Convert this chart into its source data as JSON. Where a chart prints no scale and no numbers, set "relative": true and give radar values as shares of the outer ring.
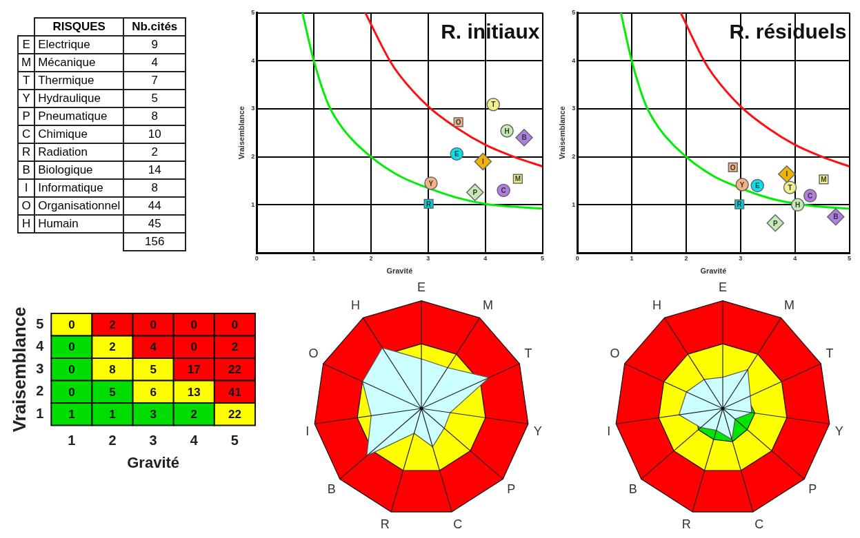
{
  "chart_data": [
    {
      "type": "other",
      "annotations": [
        "RISQUES",
        "Nb.cités"
      ],
      "y_categories": [
        "E",
        "M",
        "T",
        "Y",
        "P",
        "C",
        "R",
        "B",
        "I",
        "O",
        "H"
      ],
      "categories": [
        "Electrique",
        "Mécanique",
        "Thermique",
        "Hydraulique",
        "Pneumatique",
        "Chimique",
        "Radiation",
        "Biologique",
        "Informatique",
        "Organisationnel",
        "Humain"
      ],
      "values": [
        9,
        4,
        7,
        5,
        8,
        10,
        2,
        14,
        8,
        44,
        45
      ],
      "data_labels": true,
      "totals": [
        "156"
      ]
    },
    {
      "type": "scatter",
      "title": "R. initiaux",
      "xlabel": "Gravité",
      "ylabel": "Vraisemblance",
      "xlim": [
        0,
        5
      ],
      "ylim": [
        0,
        5
      ],
      "xticks": [
        0,
        1,
        2,
        3,
        4,
        5
      ],
      "yticks": [
        1,
        2,
        3,
        4,
        5
      ],
      "grid": true,
      "legend": false,
      "series": [
        {
          "type": "line",
          "color": "#00ee00",
          "marker": "none",
          "x": [
            0.8,
            1,
            1.25,
            1.5,
            2,
            2.5,
            3,
            3.5,
            4,
            4.5,
            5
          ],
          "values": [
            5,
            4,
            3.1,
            2.6,
            2,
            1.6,
            1.35,
            1.15,
            1.02,
            0.96,
            0.92
          ]
        },
        {
          "type": "line",
          "color": "#ff1010",
          "marker": "none",
          "x": [
            1.9,
            2.33,
            2.5,
            3,
            3.5,
            4,
            4.5,
            5
          ],
          "values": [
            5,
            4,
            3.7,
            3.05,
            2.6,
            2.25,
            2,
            1.8
          ]
        },
        {
          "name": "T",
          "color": "#f2f28c",
          "marker": "circle",
          "x": [
            4.14
          ],
          "values": [
            3.09
          ]
        },
        {
          "name": "O",
          "color": "#f4b183",
          "marker": "square",
          "x": [
            3.53
          ],
          "values": [
            2.72
          ]
        },
        {
          "name": "H",
          "color": "#c6eab4",
          "marker": "circle",
          "x": [
            4.38
          ],
          "values": [
            2.54
          ]
        },
        {
          "name": "B",
          "color": "#b07ee0",
          "marker": "diamond",
          "x": [
            4.68
          ],
          "values": [
            2.4
          ]
        },
        {
          "name": "E",
          "color": "#00e5ee",
          "marker": "circle",
          "x": [
            3.5
          ],
          "values": [
            2.06
          ]
        },
        {
          "name": "I",
          "color": "#f0b400",
          "marker": "diamond",
          "x": [
            3.96
          ],
          "values": [
            1.9
          ]
        },
        {
          "name": "M",
          "color": "#f4f08a",
          "marker": "square",
          "x": [
            4.57
          ],
          "values": [
            1.54
          ]
        },
        {
          "name": "Y",
          "color": "#f4b183",
          "marker": "circle",
          "x": [
            3.05
          ],
          "values": [
            1.45
          ]
        },
        {
          "name": "P",
          "color": "#c6eab4",
          "marker": "diamond",
          "x": [
            3.82
          ],
          "values": [
            1.26
          ]
        },
        {
          "name": "C",
          "color": "#b07ee0",
          "marker": "circle",
          "x": [
            4.32
          ],
          "values": [
            1.3
          ]
        },
        {
          "name": "R",
          "color": "#00d0d8",
          "marker": "square",
          "x": [
            3.01
          ],
          "values": [
            1.02
          ]
        }
      ]
    },
    {
      "type": "scatter",
      "title": "R. résiduels",
      "xlabel": "Gravité",
      "ylabel": "Vraisemblance",
      "xlim": [
        0,
        5
      ],
      "ylim": [
        0,
        5
      ],
      "xticks": [
        0,
        1,
        2,
        3,
        4,
        5
      ],
      "yticks": [
        1,
        2,
        3,
        4,
        5
      ],
      "grid": true,
      "legend": false,
      "series": [
        {
          "type": "line",
          "color": "#00ee00",
          "marker": "none",
          "x": [
            0.8,
            1,
            1.25,
            1.5,
            2,
            2.5,
            2.8,
            3.3,
            3.7,
            4.3,
            4.6,
            5
          ],
          "values": [
            5,
            4,
            3.1,
            2.6,
            2,
            1.6,
            1.44,
            1.22,
            1.09,
            0.98,
            0.95,
            0.92
          ]
        },
        {
          "type": "line",
          "color": "#ff1010",
          "marker": "none",
          "x": [
            1.9,
            2.33,
            2.5,
            3,
            3.5,
            4,
            4.5,
            5
          ],
          "values": [
            5,
            4,
            3.7,
            3.05,
            2.6,
            2.25,
            2,
            1.8
          ]
        },
        {
          "name": "O",
          "color": "#f4b183",
          "marker": "square",
          "x": [
            2.86
          ],
          "values": [
            1.78
          ]
        },
        {
          "name": "Y",
          "color": "#f4b183",
          "marker": "circle",
          "x": [
            3.03
          ],
          "values": [
            1.42
          ]
        },
        {
          "name": "E",
          "color": "#00e5ee",
          "marker": "circle",
          "x": [
            3.31
          ],
          "values": [
            1.4
          ]
        },
        {
          "name": "I",
          "color": "#f0b400",
          "marker": "diamond",
          "x": [
            3.85
          ],
          "values": [
            1.64
          ]
        },
        {
          "name": "T",
          "color": "#f2f28c",
          "marker": "circle",
          "x": [
            3.91
          ],
          "values": [
            1.36
          ]
        },
        {
          "name": "M",
          "color": "#f4f08a",
          "marker": "square",
          "x": [
            4.53
          ],
          "values": [
            1.53
          ]
        },
        {
          "name": "C",
          "color": "#b07ee0",
          "marker": "circle",
          "x": [
            4.28
          ],
          "values": [
            1.19
          ]
        },
        {
          "name": "H",
          "color": "#c6eab4",
          "marker": "circle",
          "x": [
            4.05
          ],
          "values": [
            1
          ]
        },
        {
          "name": "R",
          "color": "#00d0d8",
          "marker": "square",
          "x": [
            2.98
          ],
          "values": [
            1.01
          ]
        },
        {
          "name": "P",
          "color": "#c6eab4",
          "marker": "diamond",
          "x": [
            3.64
          ],
          "values": [
            0.62
          ]
        },
        {
          "name": "B",
          "color": "#b07ee0",
          "marker": "diamond",
          "x": [
            4.75
          ],
          "values": [
            0.75
          ]
        }
      ]
    },
    {
      "type": "heatmap",
      "xlabel": "Gravité",
      "ylabel": "Vraisemblance",
      "categories": [
        "1",
        "2",
        "3",
        "4",
        "5"
      ],
      "y_categories": [
        "5",
        "4",
        "3",
        "2",
        "1"
      ],
      "data_labels": true,
      "cells": [
        [
          0,
          2,
          0,
          0,
          0
        ],
        [
          0,
          2,
          4,
          0,
          2
        ],
        [
          0,
          8,
          5,
          17,
          22
        ],
        [
          0,
          5,
          6,
          13,
          41
        ],
        [
          1,
          1,
          3,
          2,
          22
        ]
      ],
      "colors": [
        [
          "#ffff00",
          "#ff0000",
          "#ff0000",
          "#ff0000",
          "#ff0000"
        ],
        [
          "#00dd00",
          "#ffff00",
          "#ff0000",
          "#ff0000",
          "#ff0000"
        ],
        [
          "#00dd00",
          "#ffff00",
          "#ffff00",
          "#ff0000",
          "#ff0000"
        ],
        [
          "#00dd00",
          "#00dd00",
          "#ffff00",
          "#ffff00",
          "#ff0000"
        ],
        [
          "#00dd00",
          "#00dd00",
          "#00dd00",
          "#00dd00",
          "#ffff00"
        ]
      ]
    },
    {
      "type": "radar",
      "relative": true,
      "categories": [
        "E",
        "M",
        "T",
        "Y",
        "P",
        "C",
        "R",
        "B",
        "I",
        "O",
        "H"
      ],
      "series": [
        {
          "color": "#ccffff",
          "values": [
            0.46,
            0.45,
            0.69,
            0.27,
            0.28,
            0.37,
            0.24,
            0.67,
            0.47,
            0.6,
            0.67
          ]
        }
      ]
    },
    {
      "type": "radar",
      "relative": true,
      "categories": [
        "E",
        "M",
        "T",
        "Y",
        "P",
        "C",
        "R",
        "B",
        "I",
        "O",
        "H"
      ],
      "series": [
        {
          "color": "#ccffff",
          "values": [
            0.29,
            0.43,
            0.28,
            0.27,
            0.15,
            0.3,
            0.21,
            0.27,
            0.41,
            0.37,
            0.32
          ]
        },
        {
          "color": "#00e600",
          "values": [
            0.25,
            0.25,
            0.25,
            0.3,
            0.3,
            0.32,
            0.3,
            0.3,
            0.25,
            0.25,
            0.2
          ]
        }
      ]
    }
  ]
}
